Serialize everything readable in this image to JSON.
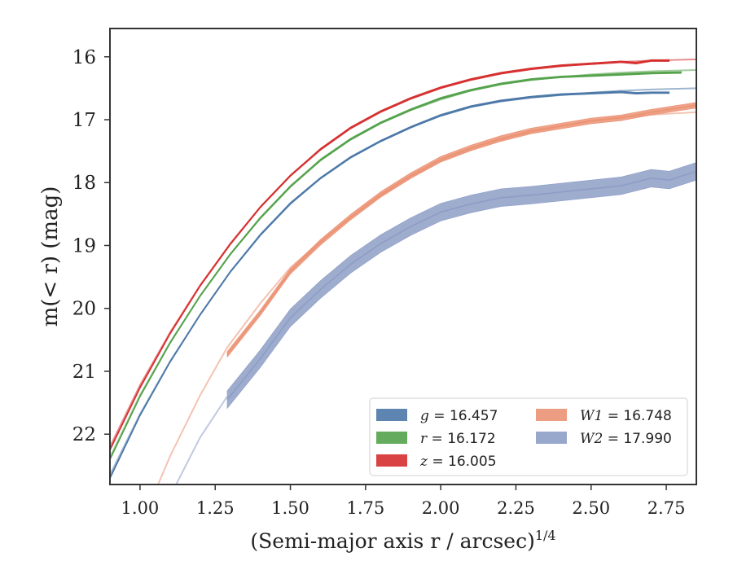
{
  "chart_data": {
    "type": "line",
    "xlabel": "(Semi-major axis r / arcsec)",
    "xlabel_superscript": "1/4",
    "ylabel": "m(< r) (mag)",
    "xlim": [
      0.9,
      2.85
    ],
    "ylim": [
      22.8,
      15.55
    ],
    "y_inverted": true,
    "x_ticks": [
      1.0,
      1.25,
      1.5,
      1.75,
      2.0,
      2.25,
      2.5,
      2.75
    ],
    "x_tick_labels": [
      "1.00",
      "1.25",
      "1.50",
      "1.75",
      "2.00",
      "2.25",
      "2.50",
      "2.75"
    ],
    "y_ticks": [
      16,
      17,
      18,
      19,
      20,
      21,
      22
    ],
    "y_tick_labels": [
      "16",
      "17",
      "18",
      "19",
      "20",
      "21",
      "22"
    ],
    "grid": false,
    "legend_placement": "lower-right",
    "legend_columns": 2,
    "series": [
      {
        "name": "g = 16.457",
        "legend_var": "g",
        "legend_value": "= 16.457",
        "color": "#4c78a8",
        "band_width": 0.03,
        "observed": {
          "x": [
            0.9,
            1.0,
            1.1,
            1.2,
            1.3,
            1.4,
            1.5,
            1.6,
            1.7,
            1.8,
            1.9,
            2.0,
            2.1,
            2.2,
            2.3,
            2.4,
            2.5,
            2.6,
            2.65,
            2.7,
            2.76
          ],
          "y": [
            22.7,
            21.7,
            20.85,
            20.1,
            19.42,
            18.83,
            18.33,
            17.93,
            17.6,
            17.34,
            17.12,
            16.93,
            16.79,
            16.7,
            16.64,
            16.6,
            16.58,
            16.56,
            16.58,
            16.57,
            16.57
          ]
        },
        "model": {
          "x": [
            0.9,
            1.0,
            1.1,
            1.2,
            1.3,
            1.4,
            1.5,
            1.6,
            1.7,
            1.8,
            1.9,
            2.0,
            2.1,
            2.2,
            2.3,
            2.4,
            2.5,
            2.6,
            2.7,
            2.85
          ],
          "y": [
            22.65,
            21.68,
            20.84,
            20.1,
            19.42,
            18.84,
            18.34,
            17.93,
            17.6,
            17.34,
            17.12,
            16.94,
            16.8,
            16.71,
            16.65,
            16.61,
            16.57,
            16.54,
            16.52,
            16.5
          ]
        }
      },
      {
        "name": "r = 16.172",
        "legend_var": "r",
        "legend_value": "= 16.172",
        "color": "#54a24b",
        "band_width": 0.03,
        "observed": {
          "x": [
            0.9,
            1.0,
            1.1,
            1.2,
            1.3,
            1.4,
            1.5,
            1.6,
            1.7,
            1.8,
            1.9,
            2.0,
            2.1,
            2.2,
            2.3,
            2.4,
            2.5,
            2.6,
            2.7,
            2.8
          ],
          "y": [
            22.4,
            21.4,
            20.55,
            19.8,
            19.14,
            18.56,
            18.06,
            17.64,
            17.31,
            17.05,
            16.84,
            16.66,
            16.53,
            16.43,
            16.36,
            16.32,
            16.3,
            16.28,
            16.26,
            16.25
          ]
        },
        "model": {
          "x": [
            0.9,
            1.0,
            1.1,
            1.2,
            1.3,
            1.4,
            1.5,
            1.6,
            1.7,
            1.8,
            1.9,
            2.0,
            2.1,
            2.2,
            2.3,
            2.4,
            2.5,
            2.6,
            2.7,
            2.85
          ],
          "y": [
            22.37,
            21.38,
            20.54,
            19.8,
            19.14,
            18.57,
            18.07,
            17.65,
            17.32,
            17.06,
            16.85,
            16.68,
            16.54,
            16.44,
            16.37,
            16.32,
            16.28,
            16.25,
            16.23,
            16.21
          ]
        }
      },
      {
        "name": "z = 16.005",
        "legend_var": "z",
        "legend_value": "= 16.005",
        "color": "#d62f2f",
        "band_width": 0.03,
        "observed": {
          "x": [
            0.9,
            1.0,
            1.1,
            1.2,
            1.3,
            1.4,
            1.5,
            1.6,
            1.7,
            1.8,
            1.9,
            2.0,
            2.1,
            2.2,
            2.3,
            2.4,
            2.5,
            2.6,
            2.65,
            2.7,
            2.76
          ],
          "y": [
            22.25,
            21.26,
            20.4,
            19.64,
            18.98,
            18.39,
            17.89,
            17.47,
            17.13,
            16.87,
            16.66,
            16.49,
            16.36,
            16.26,
            16.19,
            16.14,
            16.11,
            16.08,
            16.1,
            16.06,
            16.06
          ]
        },
        "model": {
          "x": [
            0.9,
            1.0,
            1.1,
            1.2,
            1.3,
            1.4,
            1.5,
            1.6,
            1.7,
            1.8,
            1.9,
            2.0,
            2.1,
            2.2,
            2.3,
            2.4,
            2.5,
            2.6,
            2.7,
            2.85
          ],
          "y": [
            22.2,
            21.22,
            20.38,
            19.63,
            18.97,
            18.39,
            17.89,
            17.48,
            17.14,
            16.88,
            16.67,
            16.5,
            16.37,
            16.27,
            16.2,
            16.15,
            16.11,
            16.08,
            16.06,
            16.04
          ]
        }
      },
      {
        "name": "W1 = 16.748",
        "legend_var": "W1",
        "legend_value": "= 16.748",
        "color": "#eb9273",
        "band_width": 0.09,
        "observed": {
          "x": [
            1.29,
            1.4,
            1.5,
            1.6,
            1.7,
            1.8,
            1.9,
            2.0,
            2.1,
            2.2,
            2.3,
            2.4,
            2.5,
            2.6,
            2.7,
            2.85
          ],
          "y": [
            20.73,
            20.07,
            19.41,
            18.95,
            18.55,
            18.19,
            17.89,
            17.63,
            17.45,
            17.3,
            17.18,
            17.1,
            17.02,
            16.97,
            16.88,
            16.77
          ]
        },
        "model": {
          "x": [
            1.06,
            1.1,
            1.2,
            1.29,
            1.4,
            1.5,
            1.6,
            1.7,
            1.8,
            1.9,
            2.0,
            2.1,
            2.2,
            2.3,
            2.4,
            2.5,
            2.6,
            2.7,
            2.85
          ],
          "y": [
            22.8,
            22.35,
            21.38,
            20.62,
            19.92,
            19.35,
            18.94,
            18.56,
            18.21,
            17.91,
            17.66,
            17.47,
            17.32,
            17.2,
            17.1,
            17.02,
            16.96,
            16.92,
            16.88
          ]
        }
      },
      {
        "name": "W2 = 17.990",
        "legend_var": "W2",
        "legend_value": "= 17.990",
        "color": "#8d9dc6",
        "band_width": 0.28,
        "observed": {
          "x": [
            1.29,
            1.4,
            1.5,
            1.6,
            1.7,
            1.8,
            1.9,
            2.0,
            2.1,
            2.2,
            2.3,
            2.4,
            2.5,
            2.6,
            2.7,
            2.76,
            2.85
          ],
          "y": [
            21.45,
            20.8,
            20.15,
            19.7,
            19.3,
            18.97,
            18.7,
            18.47,
            18.34,
            18.24,
            18.2,
            18.15,
            18.1,
            18.05,
            17.93,
            17.96,
            17.82
          ]
        },
        "model": {
          "x": [
            1.12,
            1.2,
            1.29
          ],
          "y": [
            22.8,
            22.05,
            21.4
          ]
        }
      }
    ]
  }
}
